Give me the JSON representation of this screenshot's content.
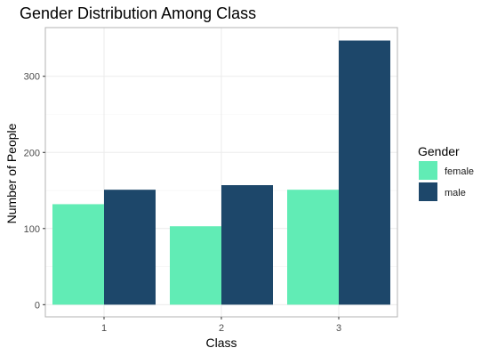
{
  "chart_data": {
    "type": "bar",
    "title": "Gender Distribution Among Class",
    "xlabel": "Class",
    "ylabel": "Number of People",
    "categories": [
      "1",
      "2",
      "3"
    ],
    "series": [
      {
        "name": "female",
        "color": "#61ECB5",
        "values": [
          132,
          103,
          151
        ]
      },
      {
        "name": "male",
        "color": "#1D476A",
        "values": [
          151,
          157,
          347
        ]
      }
    ],
    "ylim": [
      -16,
      364
    ],
    "yticks": [
      0,
      100,
      200,
      300
    ],
    "ytick_labels": [
      "0",
      "100",
      "200",
      "300"
    ],
    "legend": {
      "title": "Gender",
      "placement": "right"
    },
    "grid": true,
    "colors": {
      "female": "#61ECB5",
      "male": "#1D476A",
      "grid_major": "#EBEBEB",
      "grid_minor": "#F5F5F5",
      "panel_border": "#B3B3B3"
    }
  }
}
